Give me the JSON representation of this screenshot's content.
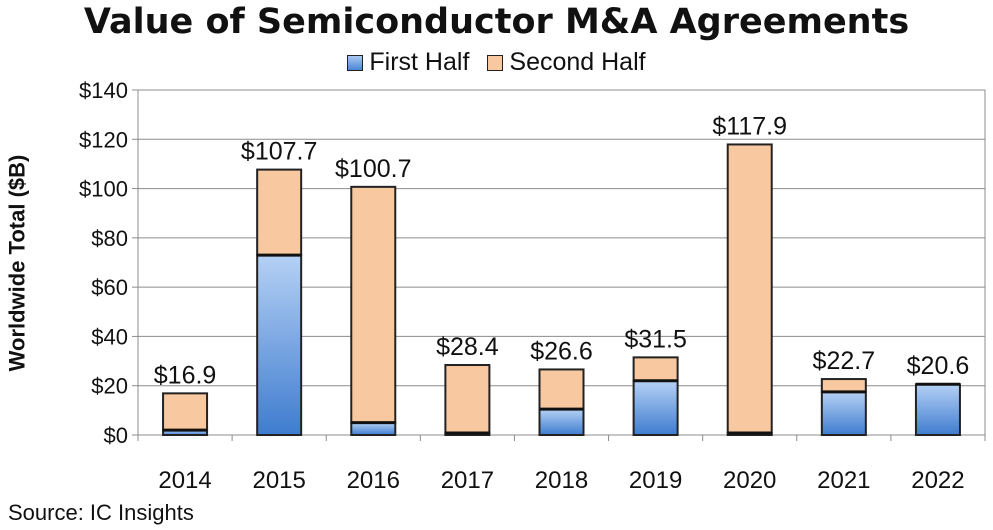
{
  "chart_data": {
    "type": "bar",
    "stacked": true,
    "title": "Value of Semiconductor M&A Agreements",
    "ylabel": "Worldwide Total ($B)",
    "xlabel": "",
    "source": "Source: IC Insights",
    "ylim": [
      0,
      140
    ],
    "yticks": [
      "$0",
      "$20",
      "$40",
      "$60",
      "$80",
      "$100",
      "$120",
      "$140"
    ],
    "ytick_values": [
      0,
      20,
      40,
      60,
      80,
      100,
      120,
      140
    ],
    "grid": true,
    "legend": "top-center",
    "categories": [
      "2014",
      "2015",
      "2016",
      "2017",
      "2018",
      "2019",
      "2020",
      "2021",
      "2022"
    ],
    "series": [
      {
        "name": "First Half",
        "color": "#5b93d8",
        "values": [
          2.0,
          73.0,
          5.0,
          0.8,
          10.5,
          22.0,
          0.8,
          17.5,
          20.6
        ]
      },
      {
        "name": "Second Half",
        "color": "#f8c8a0",
        "values": [
          14.9,
          34.7,
          95.7,
          27.6,
          16.1,
          9.5,
          117.1,
          5.2,
          0
        ]
      }
    ],
    "totals": [
      "$16.9",
      "$107.7",
      "$100.7",
      "$28.4",
      "$26.6",
      "$31.5",
      "$117.9",
      "$22.7",
      "$20.6"
    ]
  }
}
